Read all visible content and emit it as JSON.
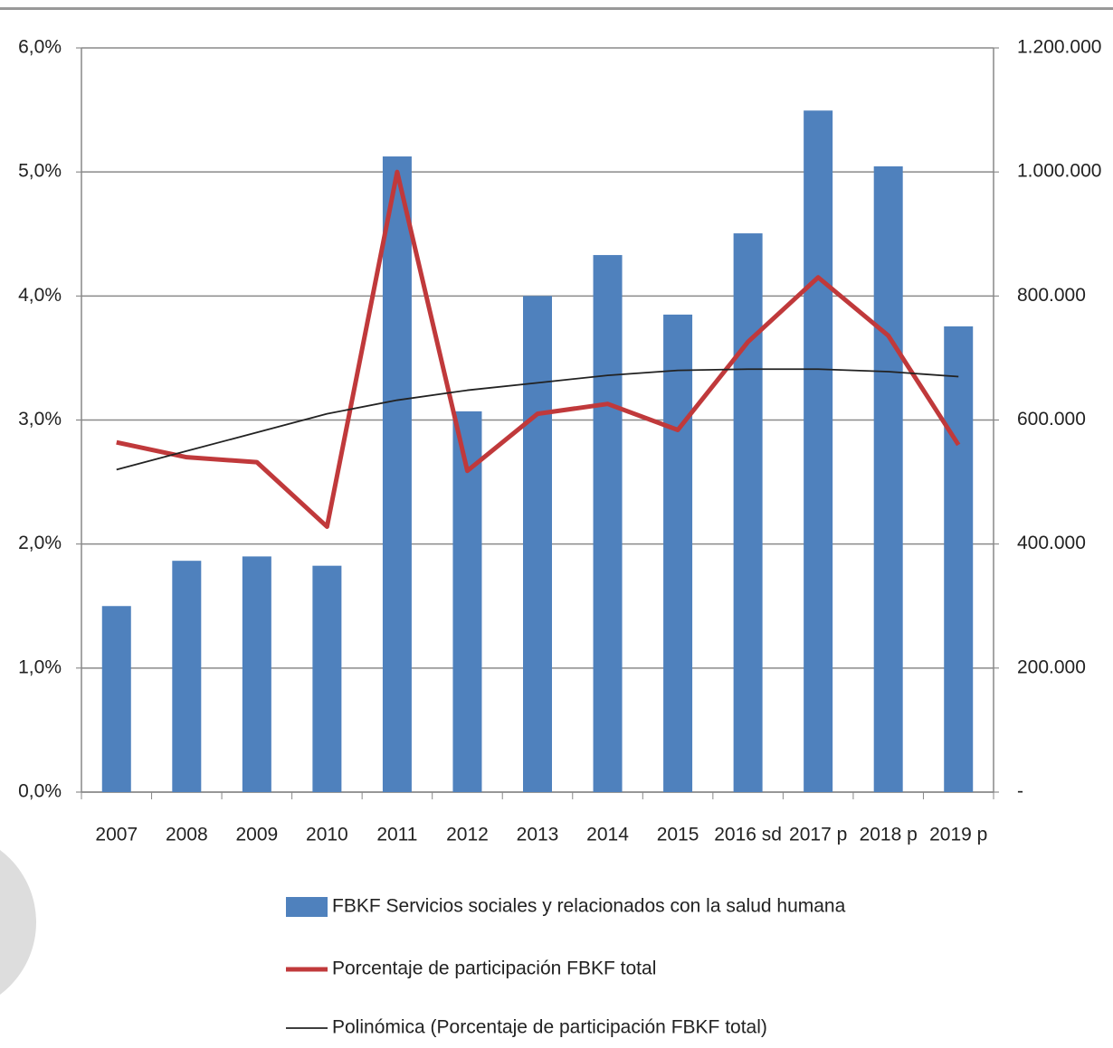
{
  "chart_data": {
    "type": "bar",
    "categories": [
      "2007",
      "2008",
      "2009",
      "2010",
      "2011",
      "2012",
      "2013",
      "2014",
      "2015",
      "2016 sd",
      "2017 p",
      "2018 p",
      "2019 p"
    ],
    "series": [
      {
        "name": "FBKF  Servicios sociales y relacionados con la salud humana",
        "type": "bar",
        "axis": "y2",
        "color": "#4f81bd",
        "values": [
          300000,
          373000,
          380000,
          365000,
          1025000,
          614000,
          800000,
          866000,
          770000,
          901000,
          1099000,
          1009000,
          751000
        ]
      },
      {
        "name": "Porcentaje de participación FBKF total",
        "type": "line",
        "axis": "y",
        "color": "#c0393b",
        "values": [
          2.82,
          2.7,
          2.66,
          2.14,
          5.0,
          2.59,
          3.05,
          3.13,
          2.92,
          3.63,
          4.15,
          3.68,
          2.8
        ]
      },
      {
        "name": "Polinómica (Porcentaje de participación FBKF total)",
        "type": "trend",
        "axis": "y",
        "color": "#222222",
        "values": [
          2.6,
          2.75,
          2.9,
          3.05,
          3.16,
          3.24,
          3.3,
          3.36,
          3.4,
          3.41,
          3.41,
          3.39,
          3.35
        ]
      }
    ],
    "ylim": [
      0,
      6
    ],
    "yticks": [
      {
        "value": 0,
        "label": "0,0%"
      },
      {
        "value": 1,
        "label": "1,0%"
      },
      {
        "value": 2,
        "label": "2,0%"
      },
      {
        "value": 3,
        "label": "3,0%"
      },
      {
        "value": 4,
        "label": "4,0%"
      },
      {
        "value": 5,
        "label": "5,0%"
      },
      {
        "value": 6,
        "label": "6,0%"
      }
    ],
    "y2lim": [
      0,
      1200000
    ],
    "y2ticks": [
      {
        "value": 0,
        "label": "-"
      },
      {
        "value": 200000,
        "label": "200.000"
      },
      {
        "value": 400000,
        "label": "400.000"
      },
      {
        "value": 600000,
        "label": "600.000"
      },
      {
        "value": 800000,
        "label": "800.000"
      },
      {
        "value": 1000000,
        "label": "1.000.000"
      },
      {
        "value": 1200000,
        "label": "1.200.000"
      }
    ],
    "grid": true
  }
}
